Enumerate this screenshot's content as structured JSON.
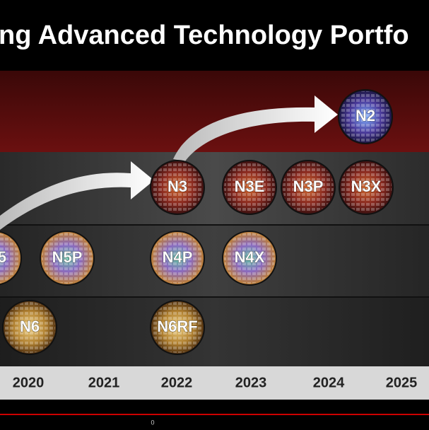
{
  "header": {
    "title": "ng Advanced Technology Portfo"
  },
  "nodes": [
    {
      "label": "N2"
    },
    {
      "label": "N3"
    },
    {
      "label": "N3E"
    },
    {
      "label": "N3P"
    },
    {
      "label": "N3X"
    },
    {
      "label": "5"
    },
    {
      "label": "N5P"
    },
    {
      "label": "N4P"
    },
    {
      "label": "N4X"
    },
    {
      "label": "N6"
    },
    {
      "label": "N6RF"
    }
  ],
  "years": [
    "2020",
    "2021",
    "2022",
    "2023",
    "2024",
    "2025"
  ],
  "footer": {
    "page": "0"
  }
}
